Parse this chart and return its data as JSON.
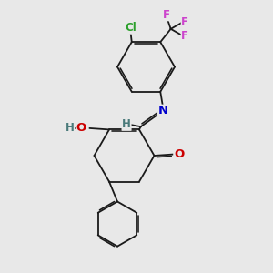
{
  "bg_color": "#e8e8e8",
  "bond_color": "#1a1a1a",
  "atoms": {
    "Cl": {
      "color": "#2ca02c",
      "fontsize": 8.5
    },
    "F": {
      "color": "#cc44cc",
      "fontsize": 8.5
    },
    "N": {
      "color": "#0000cc",
      "fontsize": 9.5
    },
    "O": {
      "color": "#cc0000",
      "fontsize": 9.5
    },
    "H": {
      "color": "#4a7a7a",
      "fontsize": 8.5
    }
  },
  "figsize": [
    3.0,
    3.0
  ],
  "dpi": 100,
  "xlim": [
    0,
    10
  ],
  "ylim": [
    0,
    10
  ]
}
